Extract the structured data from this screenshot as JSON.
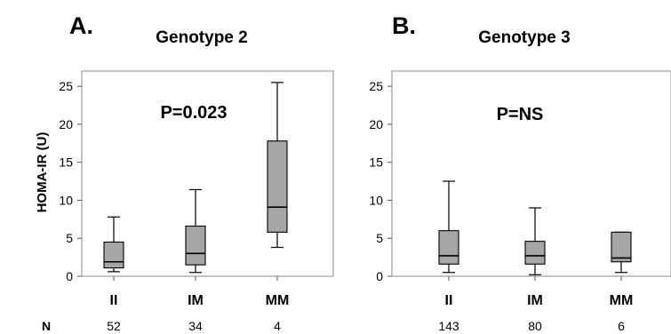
{
  "chart_data": [
    {
      "type": "box",
      "panel_label": "A.",
      "title": "Genotype 2",
      "annotation": "P=0.023",
      "ylabel": "HOMA-IR (U)",
      "ylim": [
        0,
        27
      ],
      "yticks": [
        0,
        5,
        10,
        15,
        20,
        25
      ],
      "categories": [
        "II",
        "IM",
        "MM"
      ],
      "n_title": "N",
      "n": [
        "52",
        "34",
        "4"
      ],
      "boxes": [
        {
          "min": 0.6,
          "q1": 1.1,
          "median": 1.9,
          "q3": 4.5,
          "max": 7.8
        },
        {
          "min": 0.5,
          "q1": 1.5,
          "median": 3.0,
          "q3": 6.6,
          "max": 11.4
        },
        {
          "min": 3.8,
          "q1": 5.8,
          "median": 9.1,
          "q3": 17.8,
          "max": 25.5
        }
      ],
      "box_color": "#a6a6a6"
    },
    {
      "type": "box",
      "panel_label": "B.",
      "title": "Genotype 3",
      "annotation": "P=NS",
      "ylim": [
        0,
        27
      ],
      "yticks": [
        0,
        5,
        10,
        15,
        20,
        25
      ],
      "categories": [
        "II",
        "IM",
        "MM"
      ],
      "n": [
        "143",
        "80",
        "6"
      ],
      "boxes": [
        {
          "min": 0.5,
          "q1": 1.6,
          "median": 2.7,
          "q3": 6.0,
          "max": 12.5
        },
        {
          "min": 0.2,
          "q1": 1.6,
          "median": 2.7,
          "q3": 4.6,
          "max": 9.0
        },
        {
          "min": 0.5,
          "q1": 1.9,
          "median": 2.4,
          "q3": 5.8,
          "max": 5.8
        }
      ],
      "box_color": "#a6a6a6"
    }
  ]
}
